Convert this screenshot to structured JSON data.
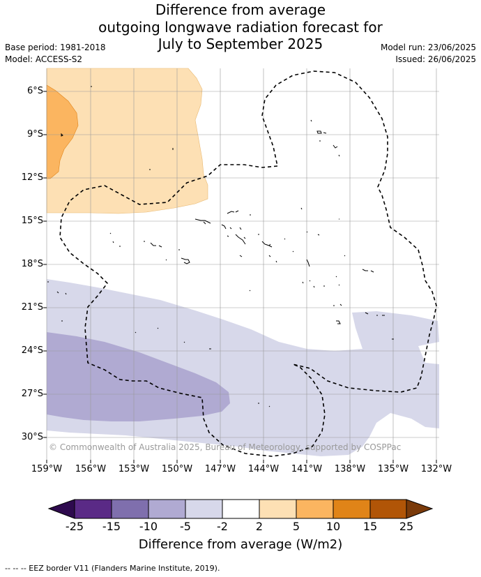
{
  "title": {
    "line1": "Difference from average",
    "line2": "outgoing longwave radiation forecast for",
    "line3": "July to September 2025"
  },
  "meta": {
    "base_period": "Base period: 1981-2018",
    "model": "Model: ACCESS-S2",
    "model_run": "Model run: 23/06/2025",
    "issued": "Issued: 26/06/2025"
  },
  "axes": {
    "lat_labels": [
      "6°S",
      "9°S",
      "12°S",
      "15°S",
      "18°S",
      "21°S",
      "24°S",
      "27°S",
      "30°S"
    ],
    "lon_labels": [
      "159°W",
      "156°W",
      "153°W",
      "150°W",
      "147°W",
      "144°W",
      "141°W",
      "138°W",
      "135°W",
      "132°W"
    ]
  },
  "colorbar": {
    "title": "Difference from average (W/m2)",
    "ticks": [
      "-25",
      "-15",
      "-10",
      "-5",
      "-2",
      "2",
      "5",
      "10",
      "15",
      "25"
    ],
    "colors": [
      "#5a2a86",
      "#7f6fad",
      "#b0aad2",
      "#d7d8ea",
      "#ffffff",
      "#fde0b4",
      "#fbb560",
      "#e08418",
      "#b15507"
    ],
    "under_color": "#2e0a4e",
    "over_color": "#7a3a0a"
  },
  "copyright": "© Commonwealth of Australia 2025, Bureau of Meteorology, supported by COSPPac",
  "eez_note": "--  --  -- EEZ border V11 (Flanders Marine Institute, 2019)."
}
